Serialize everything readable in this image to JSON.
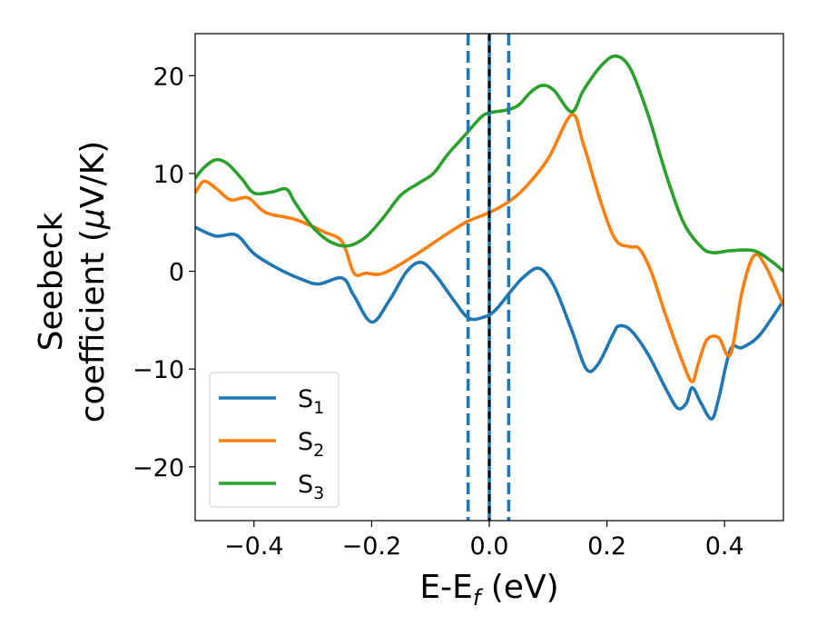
{
  "chart_data": {
    "type": "line",
    "title": "",
    "xlabel": {
      "main": "E-E",
      "sub": "f",
      "unit": " (eV)"
    },
    "ylabel": {
      "line1": "Seebeck",
      "line2": "coefficient  (",
      "mu": "μ",
      "line2_end": "V/K)"
    },
    "xlim": [
      -0.5,
      0.5
    ],
    "ylim": [
      -25.5,
      24.3
    ],
    "xticks": [
      -0.4,
      -0.2,
      0.0,
      0.2,
      0.4
    ],
    "xtick_labels": [
      "−0.4",
      "−0.2",
      "0.0",
      "0.2",
      "0.4"
    ],
    "yticks": [
      -20,
      -10,
      0,
      10,
      20
    ],
    "ytick_labels": [
      "−20",
      "−10",
      "0",
      "10",
      "20"
    ],
    "grid": false,
    "legend_position": "lower-left",
    "vlines": [
      {
        "x": -0.036,
        "style": "dashed",
        "color": "#1f77b4"
      },
      {
        "x": 0.0,
        "style": "solid",
        "color": "#1f77b4"
      },
      {
        "x": 0.0,
        "style": "dashed",
        "color": "#000000"
      },
      {
        "x": 0.033,
        "style": "dashed",
        "color": "#1f77b4"
      }
    ],
    "series": [
      {
        "name": "S",
        "sub": "1",
        "color": "#1f77b4",
        "points": [
          [
            -0.5,
            4.5
          ],
          [
            -0.465,
            3.6
          ],
          [
            -0.43,
            3.7
          ],
          [
            -0.4,
            1.8
          ],
          [
            -0.36,
            0.3
          ],
          [
            -0.32,
            -0.8
          ],
          [
            -0.29,
            -1.3
          ],
          [
            -0.25,
            -0.7
          ],
          [
            -0.23,
            -2.5
          ],
          [
            -0.2,
            -5.2
          ],
          [
            -0.17,
            -3.0
          ],
          [
            -0.14,
            0.0
          ],
          [
            -0.115,
            0.9
          ],
          [
            -0.09,
            -0.5
          ],
          [
            -0.06,
            -3.0
          ],
          [
            -0.035,
            -4.8
          ],
          [
            -0.01,
            -4.7
          ],
          [
            0.01,
            -4.0
          ],
          [
            0.04,
            -1.8
          ],
          [
            0.06,
            -0.5
          ],
          [
            0.085,
            0.3
          ],
          [
            0.11,
            -1.5
          ],
          [
            0.14,
            -6.0
          ],
          [
            0.165,
            -10.0
          ],
          [
            0.185,
            -9.5
          ],
          [
            0.21,
            -6.5
          ],
          [
            0.22,
            -5.6
          ],
          [
            0.24,
            -6.0
          ],
          [
            0.27,
            -8.5
          ],
          [
            0.3,
            -12.0
          ],
          [
            0.32,
            -14.0
          ],
          [
            0.335,
            -13.5
          ],
          [
            0.345,
            -11.9
          ],
          [
            0.36,
            -13.5
          ],
          [
            0.378,
            -15.1
          ],
          [
            0.39,
            -13.0
          ],
          [
            0.41,
            -8.0
          ],
          [
            0.43,
            -7.8
          ],
          [
            0.46,
            -6.5
          ],
          [
            0.5,
            -3.0
          ]
        ]
      },
      {
        "name": "S",
        "sub": "2",
        "color": "#ff7f0e",
        "points": [
          [
            -0.5,
            8.0
          ],
          [
            -0.485,
            9.2
          ],
          [
            -0.465,
            8.5
          ],
          [
            -0.44,
            7.3
          ],
          [
            -0.41,
            7.5
          ],
          [
            -0.38,
            6.0
          ],
          [
            -0.33,
            5.3
          ],
          [
            -0.28,
            4.0
          ],
          [
            -0.25,
            3.0
          ],
          [
            -0.23,
            -0.2
          ],
          [
            -0.21,
            -0.2
          ],
          [
            -0.18,
            -0.2
          ],
          [
            -0.13,
            1.5
          ],
          [
            -0.08,
            3.5
          ],
          [
            -0.04,
            5.0
          ],
          [
            0.0,
            6.0
          ],
          [
            0.03,
            7.0
          ],
          [
            0.06,
            8.5
          ],
          [
            0.1,
            11.5
          ],
          [
            0.14,
            16.0
          ],
          [
            0.16,
            13.0
          ],
          [
            0.19,
            7.0
          ],
          [
            0.215,
            3.2
          ],
          [
            0.24,
            2.5
          ],
          [
            0.255,
            2.3
          ],
          [
            0.275,
            0.0
          ],
          [
            0.3,
            -4.5
          ],
          [
            0.33,
            -9.5
          ],
          [
            0.345,
            -11.3
          ],
          [
            0.355,
            -9.5
          ],
          [
            0.37,
            -7.0
          ],
          [
            0.39,
            -6.8
          ],
          [
            0.41,
            -8.5
          ],
          [
            0.43,
            -2.0
          ],
          [
            0.45,
            1.6
          ],
          [
            0.47,
            0.5
          ],
          [
            0.5,
            -3.5
          ]
        ]
      },
      {
        "name": "S",
        "sub": "3",
        "color": "#2ca02c",
        "points": [
          [
            -0.5,
            9.5
          ],
          [
            -0.485,
            10.6
          ],
          [
            -0.465,
            11.4
          ],
          [
            -0.445,
            11.0
          ],
          [
            -0.42,
            9.4
          ],
          [
            -0.4,
            8.0
          ],
          [
            -0.37,
            8.1
          ],
          [
            -0.345,
            8.4
          ],
          [
            -0.33,
            7.0
          ],
          [
            -0.3,
            4.5
          ],
          [
            -0.27,
            3.0
          ],
          [
            -0.24,
            2.6
          ],
          [
            -0.21,
            3.5
          ],
          [
            -0.18,
            5.5
          ],
          [
            -0.15,
            7.8
          ],
          [
            -0.12,
            9.0
          ],
          [
            -0.095,
            10.0
          ],
          [
            -0.07,
            12.0
          ],
          [
            -0.04,
            14.0
          ],
          [
            -0.015,
            15.7
          ],
          [
            0.0,
            16.2
          ],
          [
            0.03,
            16.5
          ],
          [
            0.05,
            17.0
          ],
          [
            0.07,
            18.3
          ],
          [
            0.09,
            19.0
          ],
          [
            0.11,
            18.5
          ],
          [
            0.14,
            16.3
          ],
          [
            0.16,
            18.5
          ],
          [
            0.19,
            21.0
          ],
          [
            0.215,
            22.0
          ],
          [
            0.24,
            20.7
          ],
          [
            0.27,
            16.0
          ],
          [
            0.3,
            10.0
          ],
          [
            0.33,
            5.0
          ],
          [
            0.36,
            2.5
          ],
          [
            0.38,
            1.9
          ],
          [
            0.41,
            2.1
          ],
          [
            0.45,
            2.1
          ],
          [
            0.48,
            1.0
          ],
          [
            0.5,
            0.0
          ]
        ]
      }
    ]
  }
}
